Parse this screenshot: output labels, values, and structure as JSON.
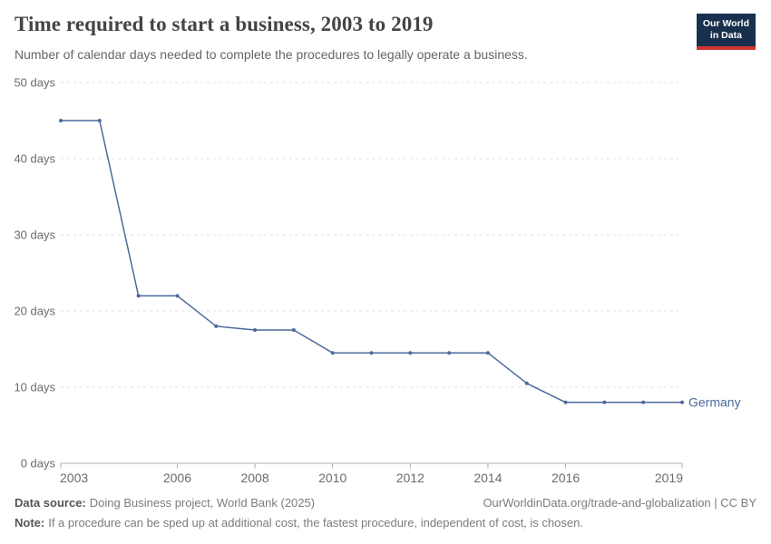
{
  "header": {
    "title": "Time required to start a business, 2003 to 2019",
    "subtitle": "Number of calendar days needed to complete the procedures to legally operate a business.",
    "logo": {
      "line1": "Our World",
      "line2": "in Data"
    }
  },
  "chart_data": {
    "type": "line",
    "title": "Time required to start a business, 2003 to 2019",
    "xlabel": "",
    "ylabel": "",
    "x": [
      2003,
      2004,
      2005,
      2006,
      2007,
      2008,
      2009,
      2010,
      2011,
      2012,
      2013,
      2014,
      2015,
      2016,
      2017,
      2018,
      2019
    ],
    "series": [
      {
        "name": "Germany",
        "values": [
          45,
          45,
          22,
          22,
          18,
          17.5,
          17.5,
          14.5,
          14.5,
          14.5,
          14.5,
          14.5,
          10.5,
          8,
          8,
          8,
          8
        ]
      }
    ],
    "xlim": [
      2003,
      2019
    ],
    "ylim": [
      0,
      50
    ],
    "xticks": [
      2003,
      2006,
      2008,
      2010,
      2012,
      2014,
      2016,
      2019
    ],
    "yticks": [
      0,
      10,
      20,
      30,
      40,
      50
    ],
    "ytick_suffix": " days",
    "grid": "horizontal-dashed",
    "legend_position": "line-end-label",
    "colors": {
      "line": "#4C6A9C",
      "point": "#4C6A9C",
      "entity_label": "#4C6A9C",
      "gridline": "#e2e2e2",
      "axis": "#b0b0b0",
      "tick": "#adadad",
      "axis_text": "#6b6b6b"
    }
  },
  "footer": {
    "datasource_label": "Data source:",
    "datasource_value": "Doing Business project, World Bank (2025)",
    "link": "OurWorldinData.org/trade-and-globalization | CC BY",
    "note_label": "Note:",
    "note_value": "If a procedure can be sped up at additional cost, the fastest procedure, independent of cost, is chosen."
  }
}
